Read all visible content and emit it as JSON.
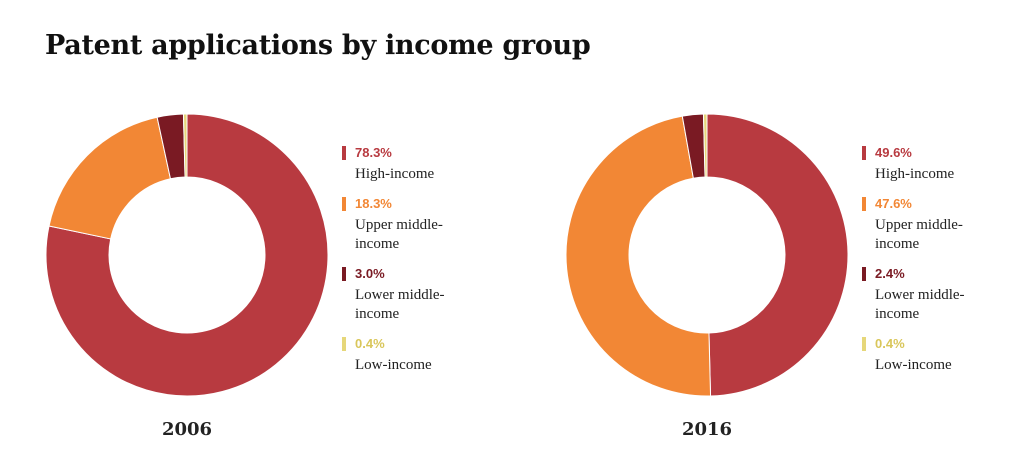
{
  "title": "Patent applications by income group",
  "chart_data": {
    "type": "pie",
    "title": "Patent applications by income group",
    "categories": [
      "High-income",
      "Upper middle-income",
      "Lower middle-income",
      "Low-income"
    ],
    "colors": [
      "#b83a40",
      "#f28735",
      "#7a1a23",
      "#e6d77a"
    ],
    "charts": [
      {
        "year": "2006",
        "values": [
          78.3,
          18.3,
          3.0,
          0.4
        ],
        "labels": [
          "78.3%",
          "18.3%",
          "3.0%",
          "0.4%"
        ]
      },
      {
        "year": "2016",
        "values": [
          49.6,
          47.6,
          2.4,
          0.4
        ],
        "labels": [
          "49.6%",
          "47.6%",
          "2.4%",
          "0.4%"
        ]
      }
    ]
  }
}
